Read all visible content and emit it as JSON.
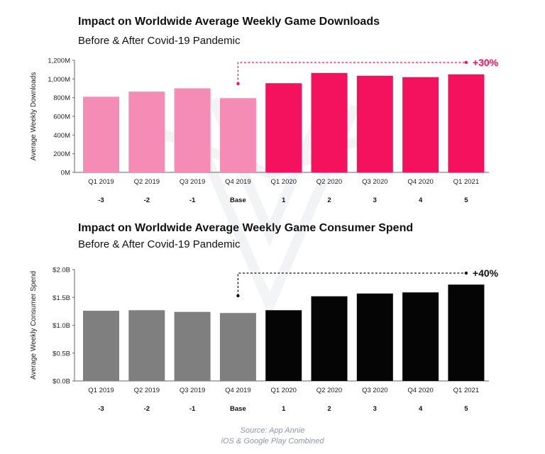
{
  "chart_data": [
    {
      "type": "bar",
      "title": "Impact on Worldwide Average Weekly Game Downloads",
      "subtitle": "Before & After Covid-19 Pandemic",
      "ylabel": "Average Weekly Downloads",
      "ylim": [
        0,
        1200
      ],
      "yticks": [
        {
          "value": 0,
          "label": "0M"
        },
        {
          "value": 200,
          "label": "200M"
        },
        {
          "value": 400,
          "label": "400M"
        },
        {
          "value": 600,
          "label": "600M"
        },
        {
          "value": 800,
          "label": "800M"
        },
        {
          "value": 1000,
          "label": "1,000M"
        },
        {
          "value": 1200,
          "label": "1,200M"
        }
      ],
      "categories": [
        "Q1 2019",
        "Q2 2019",
        "Q3 2019",
        "Q4 2019",
        "Q1 2020",
        "Q2 2020",
        "Q3 2020",
        "Q4 2020",
        "Q1 2021"
      ],
      "period_index": [
        "-3",
        "-2",
        "-1",
        "Base",
        "1",
        "2",
        "3",
        "4",
        "5"
      ],
      "values": [
        810,
        865,
        900,
        795,
        955,
        1065,
        1035,
        1020,
        1050
      ],
      "colors": {
        "before": "#f58cb6",
        "after": "#f4125f"
      },
      "before_count": 4,
      "annotation": {
        "label": "+30%",
        "color": "#f4125f",
        "from_index": 3
      },
      "grid": false
    },
    {
      "type": "bar",
      "title": "Impact on Worldwide Average Weekly Game Consumer Spend",
      "subtitle": "Before & After Covid-19 Pandemic",
      "ylabel": "Average Weekly Consumer Spend",
      "ylim": [
        0,
        2.0
      ],
      "yticks": [
        {
          "value": 0,
          "label": "$0.0B"
        },
        {
          "value": 0.5,
          "label": "$0.5B"
        },
        {
          "value": 1.0,
          "label": "$1.0B"
        },
        {
          "value": 1.5,
          "label": "$1.5B"
        },
        {
          "value": 2.0,
          "label": "$2.0B"
        }
      ],
      "categories": [
        "Q1 2019",
        "Q2 2019",
        "Q3 2019",
        "Q4 2019",
        "Q1 2020",
        "Q2 2020",
        "Q3 2020",
        "Q4 2020",
        "Q1 2021"
      ],
      "period_index": [
        "-3",
        "-2",
        "-1",
        "Base",
        "1",
        "2",
        "3",
        "4",
        "5"
      ],
      "values": [
        1.26,
        1.27,
        1.24,
        1.22,
        1.27,
        1.52,
        1.57,
        1.59,
        1.73
      ],
      "colors": {
        "before": "#7f7f7f",
        "after": "#050505"
      },
      "before_count": 4,
      "annotation": {
        "label": "+40%",
        "color": "#111111",
        "from_index": 3
      },
      "grid": false
    }
  ],
  "source": {
    "line1": "Source: App Annie",
    "line2": "iOS & Google Play Combined"
  }
}
